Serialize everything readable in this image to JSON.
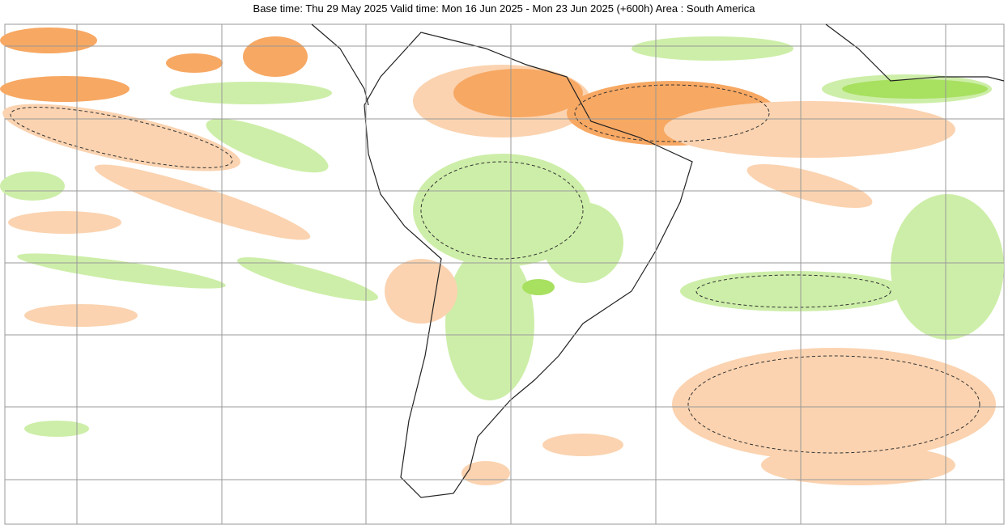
{
  "header": {
    "title": "Base time: Thu 29 May 2025 Valid time: Mon 16 Jun 2025 - Mon 23 Jun 2025 (+600h) Area : South America"
  }
}
